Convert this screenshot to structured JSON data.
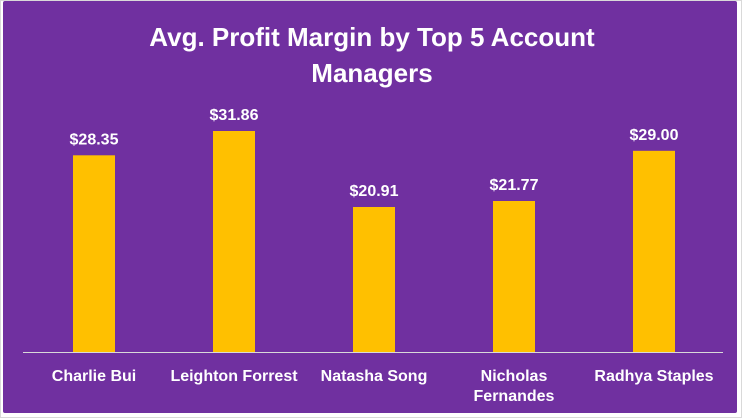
{
  "colors": {
    "background": "#7030a0",
    "bar": "#ffc000",
    "text": "#ffffff",
    "axis": "#d9d9d9"
  },
  "chart_data": {
    "type": "bar",
    "title": "Avg. Profit Margin by Top 5 Account Managers",
    "title_lines": [
      "Avg. Profit Margin by Top 5 Account",
      "Managers"
    ],
    "categories": [
      "Charlie Bui",
      "Leighton Forrest",
      "Natasha Song",
      "Nicholas Fernandes",
      "Radhya Staples"
    ],
    "category_lines": [
      [
        "Charlie Bui"
      ],
      [
        "Leighton Forrest"
      ],
      [
        "Natasha Song"
      ],
      [
        "Nicholas",
        "Fernandes"
      ],
      [
        "Radhya Staples"
      ]
    ],
    "values": [
      28.35,
      31.86,
      20.91,
      21.77,
      29.0
    ],
    "data_labels": [
      "$28.35",
      "$31.86",
      "$20.91",
      "$21.77",
      "$29.00"
    ],
    "xlabel": "",
    "ylabel": "",
    "ylim": [
      0,
      35
    ],
    "grid": false,
    "legend": "none"
  }
}
